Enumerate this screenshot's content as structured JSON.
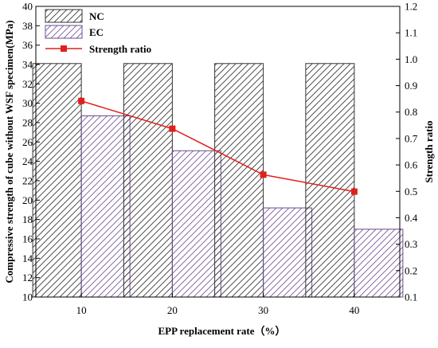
{
  "chart_data": {
    "type": "bar",
    "title": "",
    "categories": [
      "10",
      "20",
      "30",
      "40"
    ],
    "xlabel": "EPP replacement rate（%）",
    "ylabel": "Compressive strength of cube without WSF specimen(MPa)",
    "ylabel_right": "Strength ratio",
    "ylim": [
      10,
      40
    ],
    "ylim_right": [
      0.1,
      1.2
    ],
    "yticks": [
      "10",
      "12",
      "14",
      "16",
      "18",
      "20",
      "22",
      "24",
      "26",
      "28",
      "30",
      "32",
      "34",
      "36",
      "38",
      "40"
    ],
    "yticks_right": [
      "0.1",
      "0.2",
      "0.3",
      "0.4",
      "0.5",
      "0.6",
      "0.7",
      "0.8",
      "0.9",
      "1.0",
      "1.1",
      "1.2"
    ],
    "grid": false,
    "legend_position": "top-left",
    "series": [
      {
        "name": "NC",
        "type": "bar",
        "axis": "left",
        "values": [
          34.1,
          34.1,
          34.1,
          34.1
        ],
        "color": "#333333"
      },
      {
        "name": "EC",
        "type": "bar",
        "axis": "left",
        "values": [
          28.7,
          25.1,
          19.2,
          17.0
        ],
        "color": "#6b4c8a"
      },
      {
        "name": "Strength ratio",
        "type": "line",
        "axis": "right",
        "values": [
          0.842,
          0.737,
          0.563,
          0.499
        ],
        "color": "#e0201b"
      }
    ]
  }
}
